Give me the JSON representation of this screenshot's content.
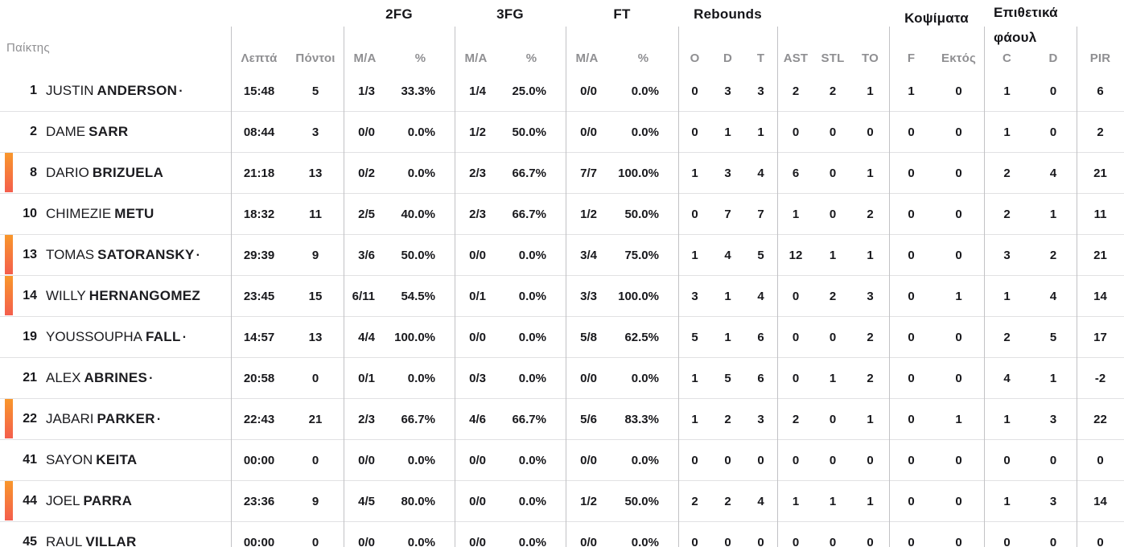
{
  "colors": {
    "on_court_gradient_top": "#f8972b",
    "on_court_gradient_bottom": "#f45e4d",
    "text_dark": "#18181c",
    "text_gray": "#8f8f92",
    "row_divider": "#e1e1e3",
    "column_divider": "#c2c2c5"
  },
  "table": {
    "starter_mark": "·",
    "header": {
      "player": "Παίκτης",
      "minutes": "Λεπτά",
      "points": "Πόντοι",
      "groups": {
        "fg2": "2FG",
        "fg3": "3FG",
        "ft": "FT",
        "rebounds": "Rebounds",
        "blocks": "Κοψίματα",
        "fouls_line1": "Επιθετικά",
        "fouls_line2": "φάουλ"
      },
      "sub": {
        "ma": "M/A",
        "pct": "%",
        "o": "O",
        "d": "D",
        "t": "T",
        "ast": "AST",
        "stl": "STL",
        "to": "TO",
        "f": "F",
        "against": "Εκτός",
        "c": "C",
        "fouls_d": "D",
        "pir": "PIR"
      }
    },
    "rows": [
      {
        "num": "1",
        "first": "JUSTIN",
        "last": "ANDERSON",
        "starter": true,
        "on_court": false,
        "min": "15:48",
        "pts": "5",
        "fg2": "1/3",
        "fg2p": "33.3%",
        "fg3": "1/4",
        "fg3p": "25.0%",
        "ft": "0/0",
        "ftp": "0.0%",
        "orb": "0",
        "drb": "3",
        "trb": "3",
        "ast": "2",
        "stl": "2",
        "to": "1",
        "bf": "1",
        "ba": "0",
        "fc": "1",
        "fd": "0",
        "pir": "6"
      },
      {
        "num": "2",
        "first": "DAME",
        "last": "SARR",
        "starter": false,
        "on_court": false,
        "min": "08:44",
        "pts": "3",
        "fg2": "0/0",
        "fg2p": "0.0%",
        "fg3": "1/2",
        "fg3p": "50.0%",
        "ft": "0/0",
        "ftp": "0.0%",
        "orb": "0",
        "drb": "1",
        "trb": "1",
        "ast": "0",
        "stl": "0",
        "to": "0",
        "bf": "0",
        "ba": "0",
        "fc": "1",
        "fd": "0",
        "pir": "2"
      },
      {
        "num": "8",
        "first": "DARIO",
        "last": "BRIZUELA",
        "starter": false,
        "on_court": true,
        "min": "21:18",
        "pts": "13",
        "fg2": "0/2",
        "fg2p": "0.0%",
        "fg3": "2/3",
        "fg3p": "66.7%",
        "ft": "7/7",
        "ftp": "100.0%",
        "orb": "1",
        "drb": "3",
        "trb": "4",
        "ast": "6",
        "stl": "0",
        "to": "1",
        "bf": "0",
        "ba": "0",
        "fc": "2",
        "fd": "4",
        "pir": "21"
      },
      {
        "num": "10",
        "first": "CHIMEZIE",
        "last": "METU",
        "starter": false,
        "on_court": false,
        "min": "18:32",
        "pts": "11",
        "fg2": "2/5",
        "fg2p": "40.0%",
        "fg3": "2/3",
        "fg3p": "66.7%",
        "ft": "1/2",
        "ftp": "50.0%",
        "orb": "0",
        "drb": "7",
        "trb": "7",
        "ast": "1",
        "stl": "0",
        "to": "2",
        "bf": "0",
        "ba": "0",
        "fc": "2",
        "fd": "1",
        "pir": "11"
      },
      {
        "num": "13",
        "first": "TOMAS",
        "last": "SATORANSKY",
        "starter": true,
        "on_court": true,
        "min": "29:39",
        "pts": "9",
        "fg2": "3/6",
        "fg2p": "50.0%",
        "fg3": "0/0",
        "fg3p": "0.0%",
        "ft": "3/4",
        "ftp": "75.0%",
        "orb": "1",
        "drb": "4",
        "trb": "5",
        "ast": "12",
        "stl": "1",
        "to": "1",
        "bf": "0",
        "ba": "0",
        "fc": "3",
        "fd": "2",
        "pir": "21"
      },
      {
        "num": "14",
        "first": "WILLY",
        "last": "HERNANGOMEZ",
        "starter": false,
        "on_court": true,
        "min": "23:45",
        "pts": "15",
        "fg2": "6/11",
        "fg2p": "54.5%",
        "fg3": "0/1",
        "fg3p": "0.0%",
        "ft": "3/3",
        "ftp": "100.0%",
        "orb": "3",
        "drb": "1",
        "trb": "4",
        "ast": "0",
        "stl": "2",
        "to": "3",
        "bf": "0",
        "ba": "1",
        "fc": "1",
        "fd": "4",
        "pir": "14"
      },
      {
        "num": "19",
        "first": "YOUSSOUPHA",
        "last": "FALL",
        "starter": true,
        "on_court": false,
        "min": "14:57",
        "pts": "13",
        "fg2": "4/4",
        "fg2p": "100.0%",
        "fg3": "0/0",
        "fg3p": "0.0%",
        "ft": "5/8",
        "ftp": "62.5%",
        "orb": "5",
        "drb": "1",
        "trb": "6",
        "ast": "0",
        "stl": "0",
        "to": "2",
        "bf": "0",
        "ba": "0",
        "fc": "2",
        "fd": "5",
        "pir": "17"
      },
      {
        "num": "21",
        "first": "ALEX",
        "last": "ABRINES",
        "starter": true,
        "on_court": false,
        "min": "20:58",
        "pts": "0",
        "fg2": "0/1",
        "fg2p": "0.0%",
        "fg3": "0/3",
        "fg3p": "0.0%",
        "ft": "0/0",
        "ftp": "0.0%",
        "orb": "1",
        "drb": "5",
        "trb": "6",
        "ast": "0",
        "stl": "1",
        "to": "2",
        "bf": "0",
        "ba": "0",
        "fc": "4",
        "fd": "1",
        "pir": "-2"
      },
      {
        "num": "22",
        "first": "JABARI",
        "last": "PARKER",
        "starter": true,
        "on_court": true,
        "min": "22:43",
        "pts": "21",
        "fg2": "2/3",
        "fg2p": "66.7%",
        "fg3": "4/6",
        "fg3p": "66.7%",
        "ft": "5/6",
        "ftp": "83.3%",
        "orb": "1",
        "drb": "2",
        "trb": "3",
        "ast": "2",
        "stl": "0",
        "to": "1",
        "bf": "0",
        "ba": "1",
        "fc": "1",
        "fd": "3",
        "pir": "22"
      },
      {
        "num": "41",
        "first": "SAYON",
        "last": "KEITA",
        "starter": false,
        "on_court": false,
        "min": "00:00",
        "pts": "0",
        "fg2": "0/0",
        "fg2p": "0.0%",
        "fg3": "0/0",
        "fg3p": "0.0%",
        "ft": "0/0",
        "ftp": "0.0%",
        "orb": "0",
        "drb": "0",
        "trb": "0",
        "ast": "0",
        "stl": "0",
        "to": "0",
        "bf": "0",
        "ba": "0",
        "fc": "0",
        "fd": "0",
        "pir": "0"
      },
      {
        "num": "44",
        "first": "JOEL",
        "last": "PARRA",
        "starter": false,
        "on_court": true,
        "min": "23:36",
        "pts": "9",
        "fg2": "4/5",
        "fg2p": "80.0%",
        "fg3": "0/0",
        "fg3p": "0.0%",
        "ft": "1/2",
        "ftp": "50.0%",
        "orb": "2",
        "drb": "2",
        "trb": "4",
        "ast": "1",
        "stl": "1",
        "to": "1",
        "bf": "0",
        "ba": "0",
        "fc": "1",
        "fd": "3",
        "pir": "14"
      },
      {
        "num": "45",
        "first": "RAUL",
        "last": "VILLAR",
        "starter": false,
        "on_court": false,
        "min": "00:00",
        "pts": "0",
        "fg2": "0/0",
        "fg2p": "0.0%",
        "fg3": "0/0",
        "fg3p": "0.0%",
        "ft": "0/0",
        "ftp": "0.0%",
        "orb": "0",
        "drb": "0",
        "trb": "0",
        "ast": "0",
        "stl": "0",
        "to": "0",
        "bf": "0",
        "ba": "0",
        "fc": "0",
        "fd": "0",
        "pir": "0"
      }
    ]
  }
}
